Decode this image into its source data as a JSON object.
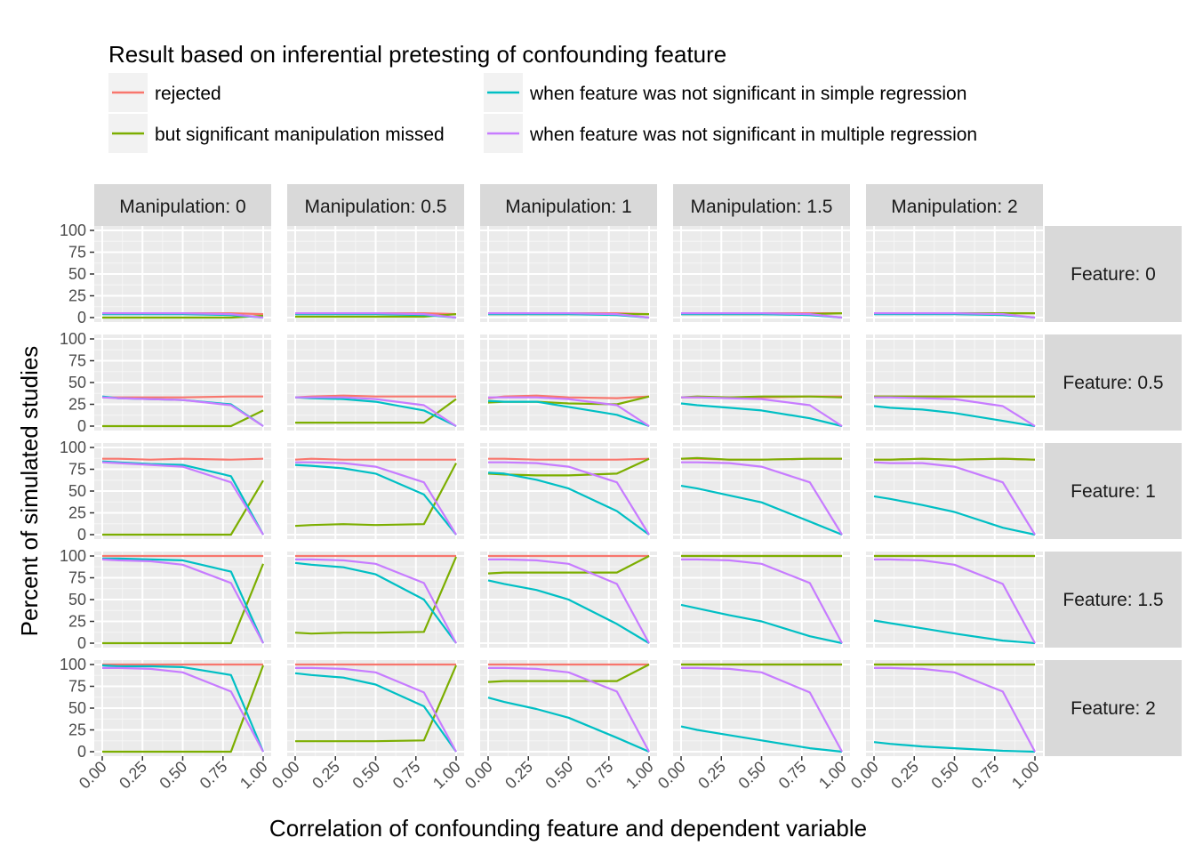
{
  "chart_data": {
    "type": "line",
    "legend": {
      "title": "Result based on inferential pretesting of confounding feature",
      "position": "top",
      "entries": [
        {
          "label": "rejected",
          "color": "#F8766D"
        },
        {
          "label": "but significant manipulation missed",
          "color": "#7CAE00"
        },
        {
          "label": "when feature was not significant in simple regression",
          "color": "#00BFC4"
        },
        {
          "label": "when feature was not significant in multiple regression",
          "color": "#C77CFF"
        }
      ]
    },
    "xlabel": "Correlation of confounding feature and dependent variable",
    "ylabel": "Percent of simulated studies",
    "x_ticks": [
      "0.00",
      "0.25",
      "0.50",
      "0.75",
      "1.00"
    ],
    "y_ticks": [
      "0",
      "25",
      "50",
      "75",
      "100"
    ],
    "xlim": [
      0,
      1
    ],
    "ylim": [
      0,
      100
    ],
    "grid": true,
    "col_facets": [
      "Manipulation: 0",
      "Manipulation: 0.5",
      "Manipulation: 1",
      "Manipulation: 1.5",
      "Manipulation: 2"
    ],
    "row_facets": [
      "Feature: 0",
      "Feature: 0.5",
      "Feature: 1",
      "Feature: 1.5",
      "Feature: 2"
    ],
    "x": [
      0,
      0.1,
      0.3,
      0.5,
      0.8,
      1.0
    ],
    "panels": [
      [
        {
          "rejected": [
            5,
            5,
            5,
            5,
            5,
            4
          ],
          "missed": [
            0,
            0,
            0,
            0,
            0,
            2
          ],
          "simple": [
            4,
            4,
            4,
            4,
            3,
            0
          ],
          "multiple": [
            5,
            5,
            5,
            5,
            4,
            0
          ]
        },
        {
          "rejected": [
            5,
            5,
            5,
            5,
            5,
            4
          ],
          "missed": [
            1,
            1,
            1,
            1,
            1,
            4
          ],
          "simple": [
            4,
            4,
            4,
            4,
            3,
            0
          ],
          "multiple": [
            5,
            5,
            5,
            5,
            4,
            0
          ]
        },
        {
          "rejected": [
            5,
            5,
            5,
            5,
            5,
            4
          ],
          "missed": [
            4,
            4,
            4,
            4,
            4,
            4
          ],
          "simple": [
            4,
            4,
            4,
            4,
            3,
            0
          ],
          "multiple": [
            5,
            5,
            5,
            5,
            4,
            0
          ]
        },
        {
          "rejected": [
            5,
            5,
            5,
            5,
            5,
            5
          ],
          "missed": [
            4,
            4,
            4,
            4,
            4,
            5
          ],
          "simple": [
            4,
            4,
            4,
            4,
            3,
            0
          ],
          "multiple": [
            5,
            5,
            5,
            5,
            4,
            0
          ]
        },
        {
          "rejected": [
            5,
            5,
            5,
            5,
            5,
            5
          ],
          "missed": [
            5,
            5,
            5,
            5,
            5,
            5
          ],
          "simple": [
            4,
            4,
            4,
            4,
            3,
            0
          ],
          "multiple": [
            5,
            5,
            5,
            5,
            4,
            0
          ]
        }
      ],
      [
        {
          "rejected": [
            33,
            33,
            33,
            33,
            34,
            34
          ],
          "missed": [
            0,
            0,
            0,
            0,
            0,
            18
          ],
          "simple": [
            34,
            32,
            31,
            30,
            25,
            0
          ],
          "multiple": [
            33,
            32,
            31,
            30,
            24,
            0
          ]
        },
        {
          "rejected": [
            33,
            34,
            35,
            34,
            34,
            34
          ],
          "missed": [
            4,
            4,
            4,
            4,
            4,
            31
          ],
          "simple": [
            33,
            32,
            31,
            28,
            18,
            0
          ],
          "multiple": [
            33,
            33,
            33,
            31,
            24,
            0
          ]
        },
        {
          "rejected": [
            32,
            34,
            35,
            33,
            32,
            34
          ],
          "missed": [
            27,
            28,
            28,
            26,
            25,
            34
          ],
          "simple": [
            29,
            28,
            28,
            22,
            13,
            0
          ],
          "multiple": [
            33,
            33,
            33,
            31,
            24,
            0
          ]
        },
        {
          "rejected": [
            33,
            33,
            33,
            33,
            34,
            34
          ],
          "missed": [
            33,
            34,
            33,
            34,
            34,
            33
          ],
          "simple": [
            26,
            24,
            21,
            18,
            9,
            0
          ],
          "multiple": [
            33,
            33,
            32,
            31,
            24,
            0
          ]
        },
        {
          "rejected": [
            34,
            34,
            34,
            34,
            34,
            34
          ],
          "missed": [
            34,
            34,
            34,
            34,
            34,
            34
          ],
          "simple": [
            23,
            21,
            19,
            15,
            6,
            0
          ],
          "multiple": [
            33,
            33,
            32,
            31,
            23,
            0
          ]
        }
      ],
      [
        {
          "rejected": [
            87,
            87,
            86,
            87,
            86,
            87
          ],
          "missed": [
            0,
            0,
            0,
            0,
            0,
            62
          ],
          "simple": [
            84,
            83,
            81,
            80,
            67,
            0
          ],
          "multiple": [
            83,
            82,
            80,
            78,
            60,
            0
          ]
        },
        {
          "rejected": [
            86,
            87,
            86,
            86,
            86,
            86
          ],
          "missed": [
            10,
            11,
            12,
            11,
            12,
            82
          ],
          "simple": [
            80,
            79,
            76,
            70,
            46,
            0
          ],
          "multiple": [
            83,
            83,
            82,
            78,
            60,
            0
          ]
        },
        {
          "rejected": [
            87,
            87,
            86,
            86,
            86,
            87
          ],
          "missed": [
            70,
            69,
            68,
            68,
            70,
            87
          ],
          "simple": [
            71,
            70,
            63,
            53,
            27,
            0
          ],
          "multiple": [
            83,
            83,
            82,
            78,
            60,
            0
          ]
        },
        {
          "rejected": [
            87,
            87,
            86,
            86,
            87,
            87
          ],
          "missed": [
            87,
            88,
            86,
            86,
            87,
            87
          ],
          "simple": [
            56,
            53,
            45,
            37,
            15,
            0
          ],
          "multiple": [
            83,
            83,
            82,
            78,
            60,
            0
          ]
        },
        {
          "rejected": [
            86,
            86,
            87,
            86,
            87,
            86
          ],
          "missed": [
            86,
            86,
            87,
            86,
            87,
            86
          ],
          "simple": [
            44,
            41,
            34,
            26,
            8,
            0
          ],
          "multiple": [
            83,
            82,
            82,
            78,
            60,
            0
          ]
        }
      ],
      [
        {
          "rejected": [
            100,
            100,
            100,
            100,
            100,
            100
          ],
          "missed": [
            0,
            0,
            0,
            0,
            0,
            91
          ],
          "simple": [
            97,
            97,
            96,
            95,
            82,
            0
          ],
          "multiple": [
            96,
            95,
            94,
            90,
            69,
            0
          ]
        },
        {
          "rejected": [
            100,
            100,
            100,
            100,
            100,
            100
          ],
          "missed": [
            12,
            11,
            12,
            12,
            13,
            99
          ],
          "simple": [
            92,
            90,
            87,
            79,
            50,
            0
          ],
          "multiple": [
            96,
            96,
            95,
            91,
            69,
            0
          ]
        },
        {
          "rejected": [
            100,
            100,
            100,
            100,
            100,
            100
          ],
          "missed": [
            80,
            81,
            81,
            81,
            81,
            100
          ],
          "simple": [
            72,
            68,
            61,
            50,
            22,
            0
          ],
          "multiple": [
            96,
            96,
            95,
            91,
            68,
            0
          ]
        },
        {
          "rejected": [
            100,
            100,
            100,
            100,
            100,
            100
          ],
          "missed": [
            100,
            100,
            100,
            100,
            100,
            100
          ],
          "simple": [
            44,
            40,
            32,
            25,
            8,
            0
          ],
          "multiple": [
            96,
            96,
            95,
            91,
            69,
            0
          ]
        },
        {
          "rejected": [
            100,
            100,
            100,
            100,
            100,
            100
          ],
          "missed": [
            100,
            100,
            100,
            100,
            100,
            100
          ],
          "simple": [
            26,
            23,
            17,
            11,
            3,
            0
          ],
          "multiple": [
            96,
            96,
            95,
            90,
            68,
            0
          ]
        }
      ],
      [
        {
          "rejected": [
            100,
            100,
            100,
            100,
            100,
            100
          ],
          "missed": [
            0,
            0,
            0,
            0,
            0,
            99
          ],
          "simple": [
            99,
            98,
            98,
            97,
            88,
            0
          ],
          "multiple": [
            96,
            96,
            95,
            91,
            69,
            0
          ]
        },
        {
          "rejected": [
            100,
            100,
            100,
            100,
            100,
            100
          ],
          "missed": [
            12,
            12,
            12,
            12,
            13,
            99
          ],
          "simple": [
            90,
            88,
            85,
            77,
            52,
            0
          ],
          "multiple": [
            96,
            96,
            95,
            91,
            68,
            0
          ]
        },
        {
          "rejected": [
            100,
            100,
            100,
            100,
            100,
            100
          ],
          "missed": [
            80,
            81,
            81,
            81,
            81,
            100
          ],
          "simple": [
            62,
            57,
            49,
            39,
            16,
            0
          ],
          "multiple": [
            96,
            96,
            95,
            91,
            69,
            0
          ]
        },
        {
          "rejected": [
            100,
            100,
            100,
            100,
            100,
            100
          ],
          "missed": [
            100,
            100,
            100,
            100,
            100,
            100
          ],
          "simple": [
            29,
            25,
            19,
            13,
            4,
            0
          ],
          "multiple": [
            96,
            96,
            95,
            91,
            68,
            0
          ]
        },
        {
          "rejected": [
            100,
            100,
            100,
            100,
            100,
            100
          ],
          "missed": [
            100,
            100,
            100,
            100,
            100,
            100
          ],
          "simple": [
            11,
            9,
            6,
            4,
            1,
            0
          ],
          "multiple": [
            96,
            96,
            95,
            91,
            69,
            0
          ]
        }
      ]
    ]
  }
}
